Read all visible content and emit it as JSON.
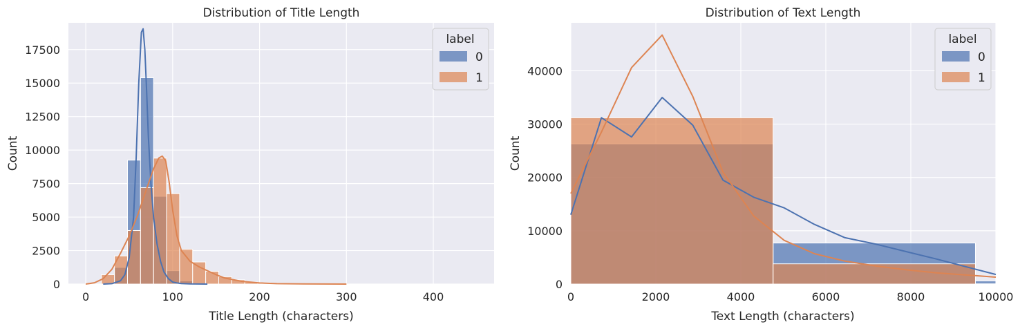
{
  "colors": {
    "background": "#eaeaf2",
    "grid": "#ffffff",
    "label0": "#4c72b0",
    "label1": "#dd8452"
  },
  "chart_data": [
    {
      "type": "histogram",
      "title": "Distribution of Title Length",
      "xlabel": "Title Length (characters)",
      "ylabel": "Count",
      "xlim": [
        -20,
        470
      ],
      "ylim": [
        0,
        19500
      ],
      "xticks": [
        0,
        100,
        200,
        300,
        400
      ],
      "yticks": [
        0,
        2500,
        5000,
        7500,
        10000,
        12500,
        15000,
        17500
      ],
      "tick_labels_x": [
        "0",
        "100",
        "200",
        "300",
        "400"
      ],
      "tick_labels_y": [
        "0",
        "2500",
        "5000",
        "7500",
        "10000",
        "12500",
        "15000",
        "17500"
      ],
      "grid": true,
      "legend": {
        "title": "label",
        "entries": [
          "0",
          "1"
        ],
        "placement": "top-right"
      },
      "bin_edges": [
        18,
        33,
        48,
        63,
        78,
        93,
        108,
        123,
        138,
        153,
        168,
        183,
        198,
        213,
        228,
        243
      ],
      "series": [
        {
          "name": "0",
          "values": [
            30,
            1250,
            9250,
            15400,
            6550,
            1000,
            250,
            80,
            30,
            10,
            5,
            0,
            0,
            0,
            0
          ]
        },
        {
          "name": "1",
          "values": [
            700,
            2100,
            4000,
            7200,
            9400,
            6750,
            2600,
            1650,
            950,
            550,
            320,
            150,
            90,
            50,
            30
          ]
        }
      ],
      "kde": [
        {
          "name": "0",
          "x": [
            20,
            30,
            40,
            45,
            50,
            55,
            58,
            61,
            64,
            66,
            68,
            70,
            72,
            75,
            78,
            82,
            86,
            90,
            95,
            100,
            105,
            110,
            120,
            130,
            140
          ],
          "y": [
            0,
            30,
            250,
            700,
            2000,
            5000,
            9500,
            15000,
            18800,
            19050,
            17500,
            14500,
            11000,
            7500,
            5000,
            3000,
            1700,
            900,
            400,
            150,
            80,
            40,
            15,
            5,
            0
          ]
        },
        {
          "name": "1",
          "x": [
            0,
            10,
            20,
            30,
            40,
            50,
            60,
            70,
            78,
            84,
            88,
            92,
            96,
            100,
            105,
            110,
            120,
            130,
            140,
            150,
            160,
            180,
            200,
            220,
            250,
            300
          ],
          "y": [
            0,
            100,
            400,
            1100,
            2300,
            3600,
            5200,
            7100,
            8600,
            9400,
            9550,
            9200,
            7600,
            5500,
            3600,
            2500,
            1700,
            1300,
            1000,
            700,
            450,
            200,
            80,
            30,
            10,
            0
          ]
        }
      ]
    },
    {
      "type": "histogram",
      "title": "Distribution of Text Length",
      "xlabel": "Text Length (characters)",
      "ylabel": "Count",
      "xlim": [
        0,
        10000
      ],
      "ylim": [
        0,
        49000
      ],
      "xticks": [
        0,
        2000,
        4000,
        6000,
        8000,
        10000
      ],
      "yticks": [
        0,
        10000,
        20000,
        30000,
        40000
      ],
      "tick_labels_x": [
        "0",
        "2000",
        "4000",
        "6000",
        "8000",
        "10000"
      ],
      "tick_labels_y": [
        "0",
        "10000",
        "20000",
        "30000",
        "40000"
      ],
      "grid": true,
      "legend": {
        "title": "label",
        "entries": [
          "0",
          "1"
        ],
        "placement": "top-right"
      },
      "bin_edges": [
        0,
        4760,
        9520,
        10000
      ],
      "series": [
        {
          "name": "0",
          "values": [
            26300,
            7700,
            600
          ]
        },
        {
          "name": "1",
          "values": [
            31200,
            3800,
            50
          ]
        }
      ],
      "kde": [
        {
          "name": "0",
          "x": [
            0,
            720,
            1430,
            2150,
            2870,
            3580,
            4300,
            5020,
            5730,
            6450,
            7170,
            7880,
            8600,
            9320,
            10000
          ],
          "y": [
            13000,
            31200,
            27600,
            35000,
            29800,
            19500,
            16300,
            14300,
            11200,
            8700,
            7500,
            6100,
            4700,
            3200,
            1800
          ]
        },
        {
          "name": "1",
          "x": [
            0,
            720,
            1430,
            2150,
            2870,
            3580,
            4300,
            5020,
            5730,
            6450,
            7170,
            7880,
            8600,
            9320,
            10000
          ],
          "y": [
            17000,
            28500,
            40600,
            46700,
            35200,
            21000,
            12800,
            8200,
            5700,
            4300,
            3400,
            2700,
            2100,
            1700,
            1300
          ]
        }
      ]
    }
  ]
}
